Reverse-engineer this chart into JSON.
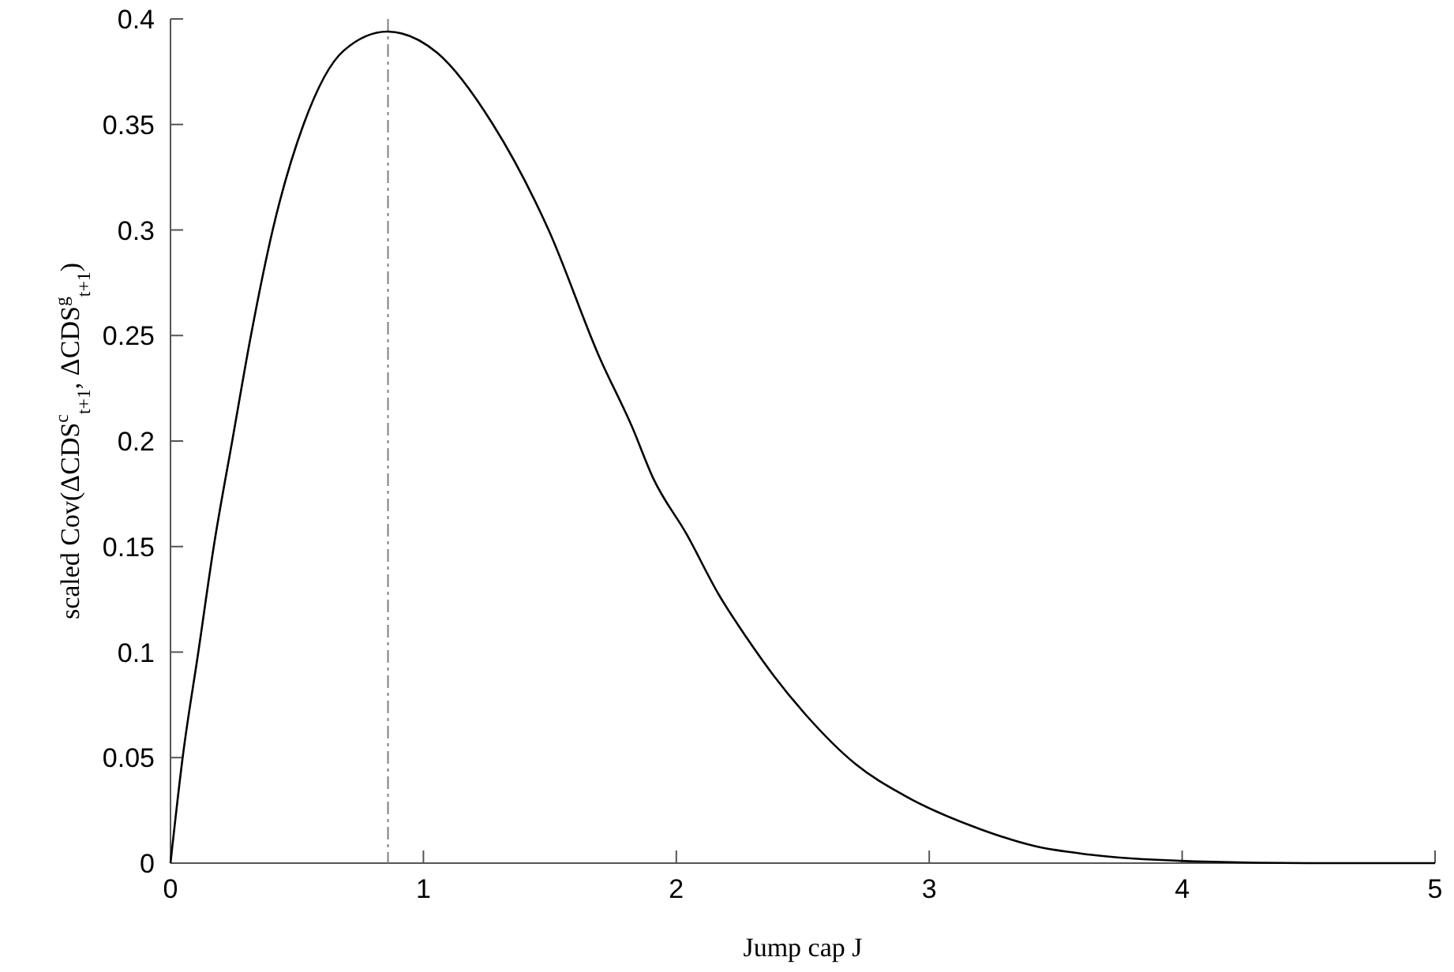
{
  "chart_data": {
    "type": "line",
    "xlabel": "Jump cap J",
    "ylabel": "scaled Cov(ΔCDS$^{c}$$_{t+1}$, ΔCDS$^{g}$$_{t+1}$)",
    "xlim": [
      0,
      5
    ],
    "xticks": [
      0,
      1,
      2,
      3,
      4,
      5
    ],
    "ylim": [
      0,
      0.4
    ],
    "yticks": [
      0,
      0.05,
      0.1,
      0.15,
      0.2,
      0.25,
      0.3,
      0.35,
      0.4
    ],
    "marker": "none",
    "line_style": "solid",
    "series": [
      {
        "color": "#000000",
        "x": [
          0,
          0.048,
          0.11,
          0.171,
          0.244,
          0.318,
          0.404,
          0.526,
          0.685,
          0.858,
          1.054,
          1.275,
          1.495,
          1.695,
          1.824,
          1.91,
          2.04,
          2.169,
          2.277,
          2.384,
          2.514,
          2.708,
          2.902,
          3.204,
          3.419,
          3.635,
          4.01,
          4.5,
          5
        ],
        "values": [
          0,
          0.05,
          0.1,
          0.15,
          0.2,
          0.25,
          0.3,
          0.35,
          0.385,
          0.394,
          0.384,
          0.35,
          0.3,
          0.24,
          0.207,
          0.182,
          0.156,
          0.127,
          0.107,
          0.089,
          0.07,
          0.047,
          0.032,
          0.016,
          0.008,
          0.004,
          0.001,
          0,
          0
        ]
      }
    ],
    "ref_lines": [
      {
        "axis": "x",
        "value": 0.86,
        "color": "#7f7f7f",
        "line_style": "dashdot"
      }
    ]
  }
}
